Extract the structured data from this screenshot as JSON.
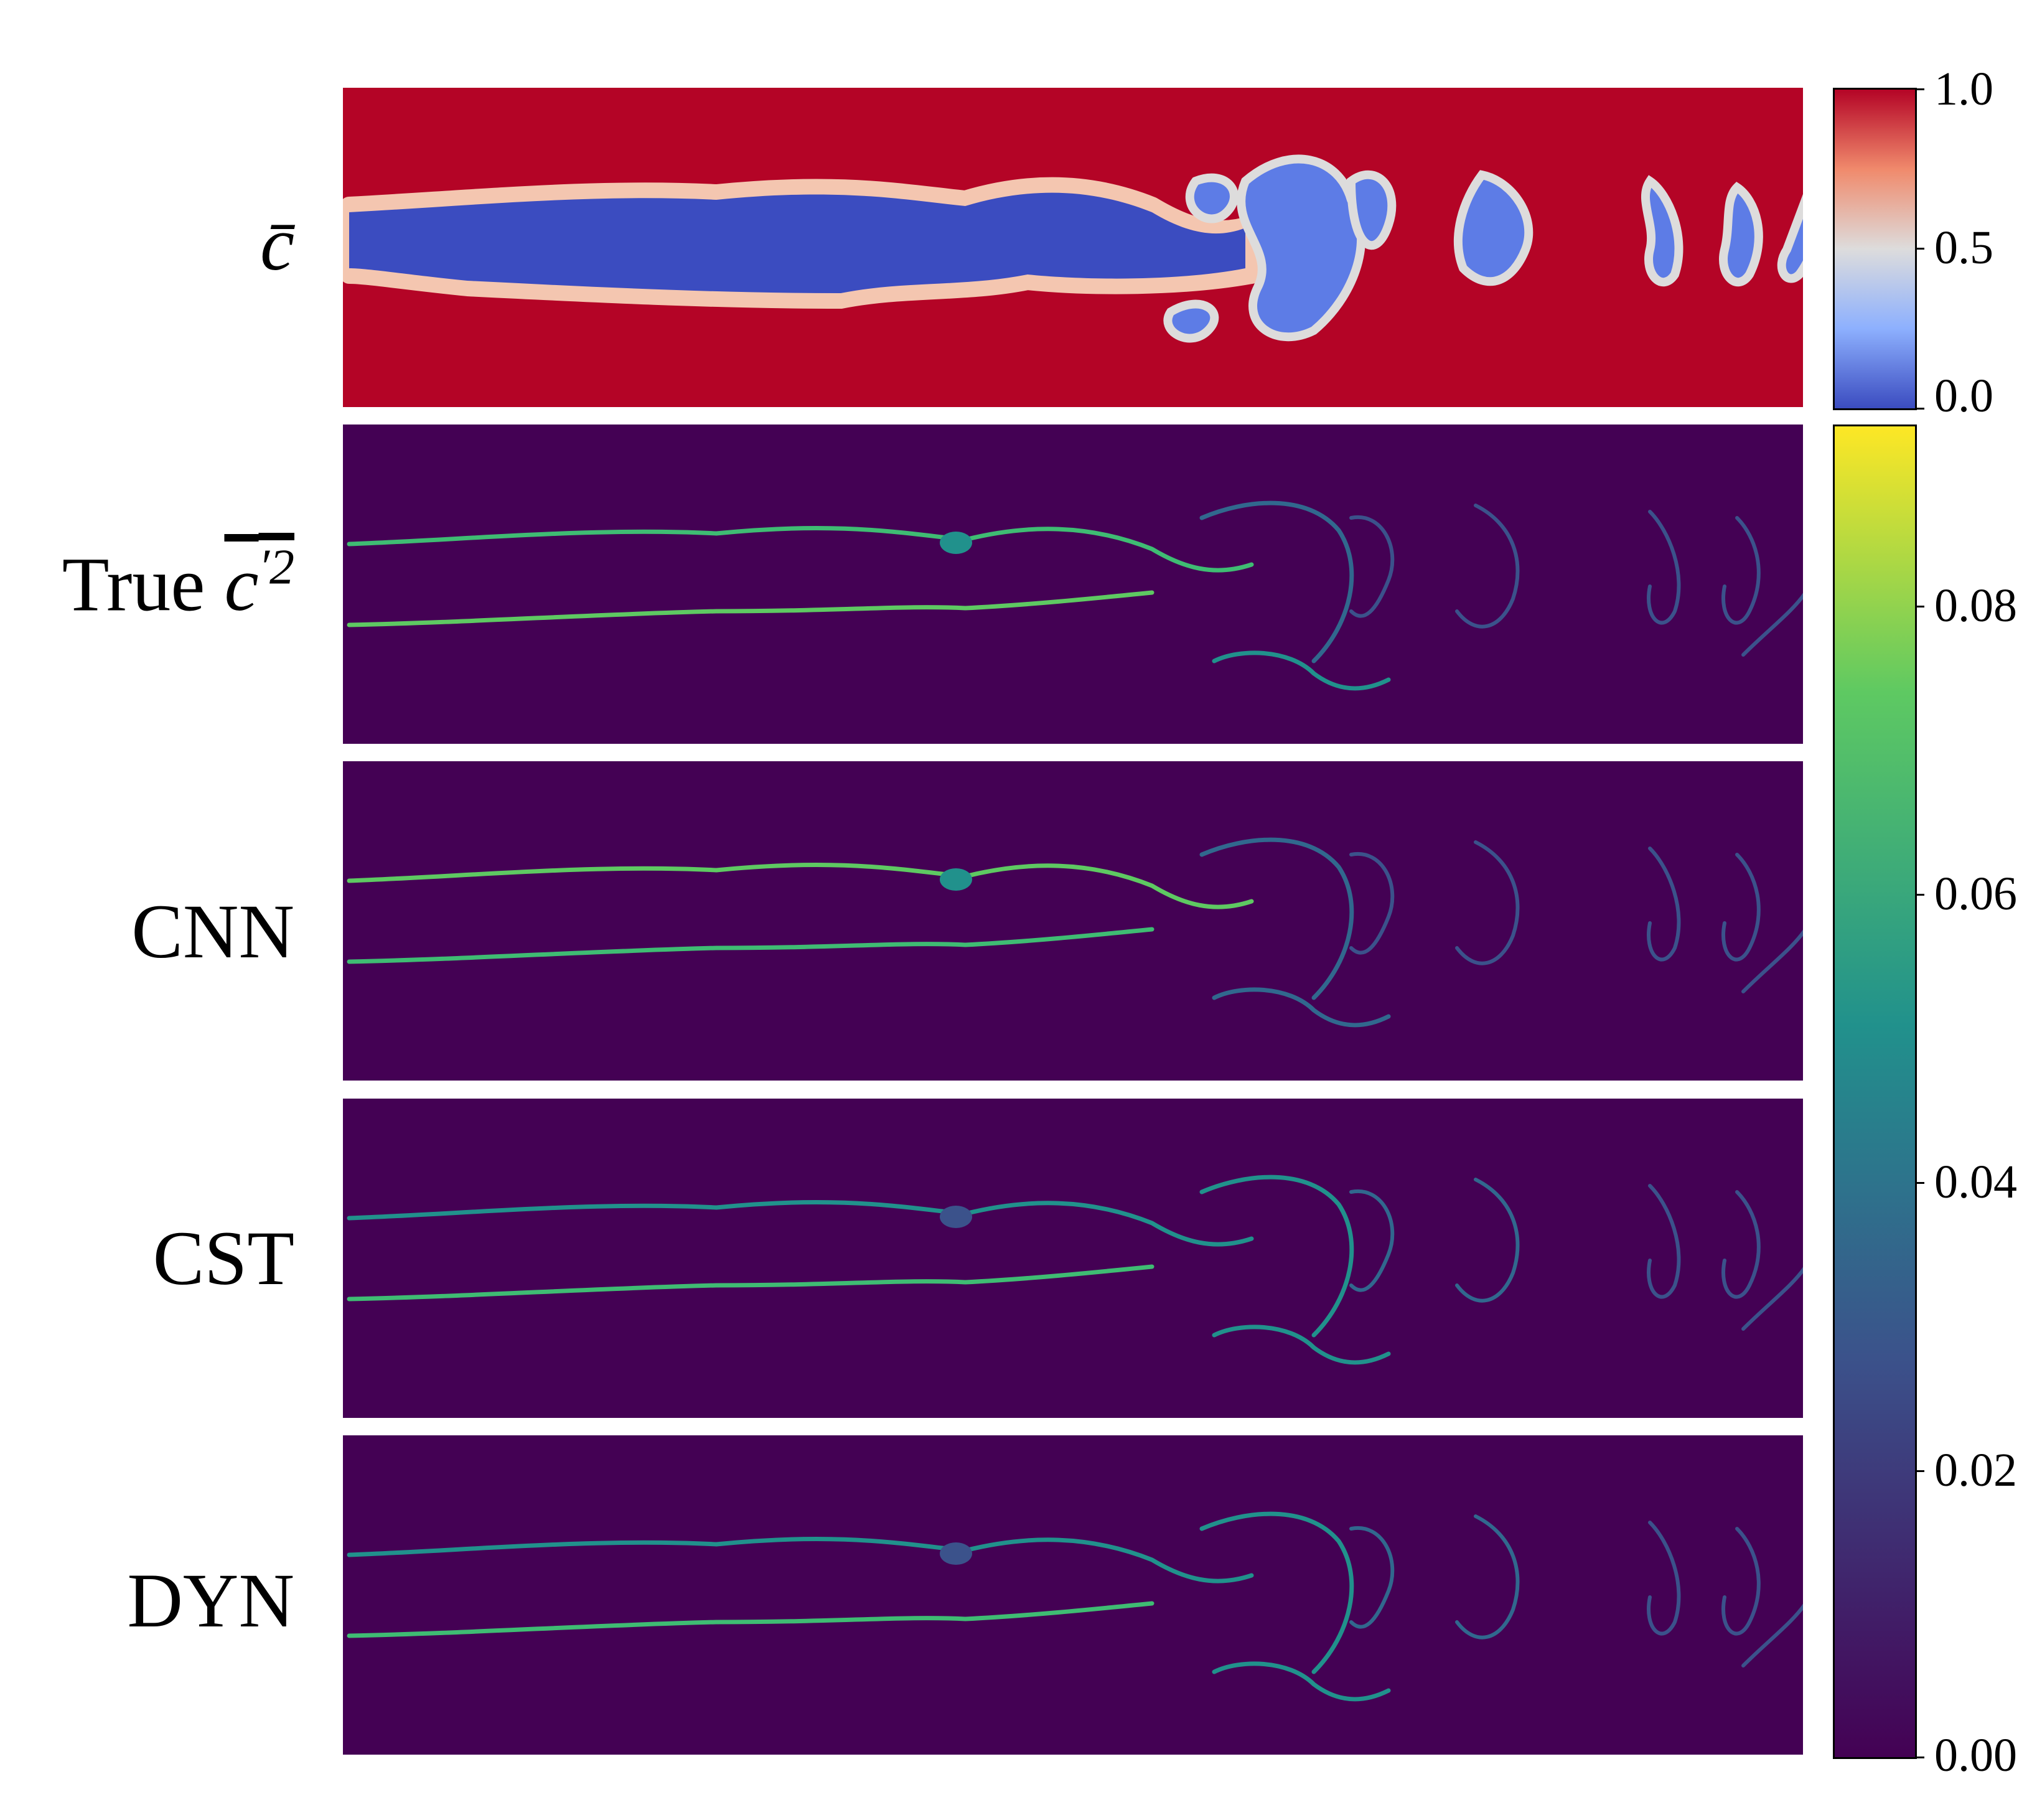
{
  "rows": {
    "c_bar": {
      "label": "c̄"
    },
    "true": {
      "label_prefix": "True",
      "label_var": "c",
      "label_sup": "′2"
    },
    "cnn": {
      "label": "CNN"
    },
    "cst": {
      "label": "CST"
    },
    "dyn": {
      "label": "DYN"
    }
  },
  "colorbar_top": {
    "colormap": "coolwarm",
    "ticks": [
      "1.0",
      "0.5",
      "0.0"
    ]
  },
  "colorbar_bottom": {
    "colormap": "viridis",
    "ticks": [
      "0.08",
      "0.06",
      "0.04",
      "0.02",
      "0.00"
    ]
  },
  "colors": {
    "coolwarm_high": "#b40426",
    "coolwarm_mid": "#dddcdc",
    "coolwarm_low": "#3b4cc0",
    "viridis_low": "#440154",
    "viridis_mid": "#21918c",
    "viridis_high": "#fde725"
  },
  "chart_data": [
    {
      "type": "heatmap",
      "title": "c̄",
      "colormap": "coolwarm",
      "vmin": 0.0,
      "vmax": 1.0
    },
    {
      "type": "heatmap",
      "title": "True c′2",
      "colormap": "viridis",
      "vmin": 0.0,
      "vmax": 0.09
    },
    {
      "type": "heatmap",
      "title": "CNN",
      "colormap": "viridis",
      "vmin": 0.0,
      "vmax": 0.09
    },
    {
      "type": "heatmap",
      "title": "CST",
      "colormap": "viridis",
      "vmin": 0.0,
      "vmax": 0.09
    },
    {
      "type": "heatmap",
      "title": "DYN",
      "colormap": "viridis",
      "vmin": 0.0,
      "vmax": 0.09
    }
  ]
}
